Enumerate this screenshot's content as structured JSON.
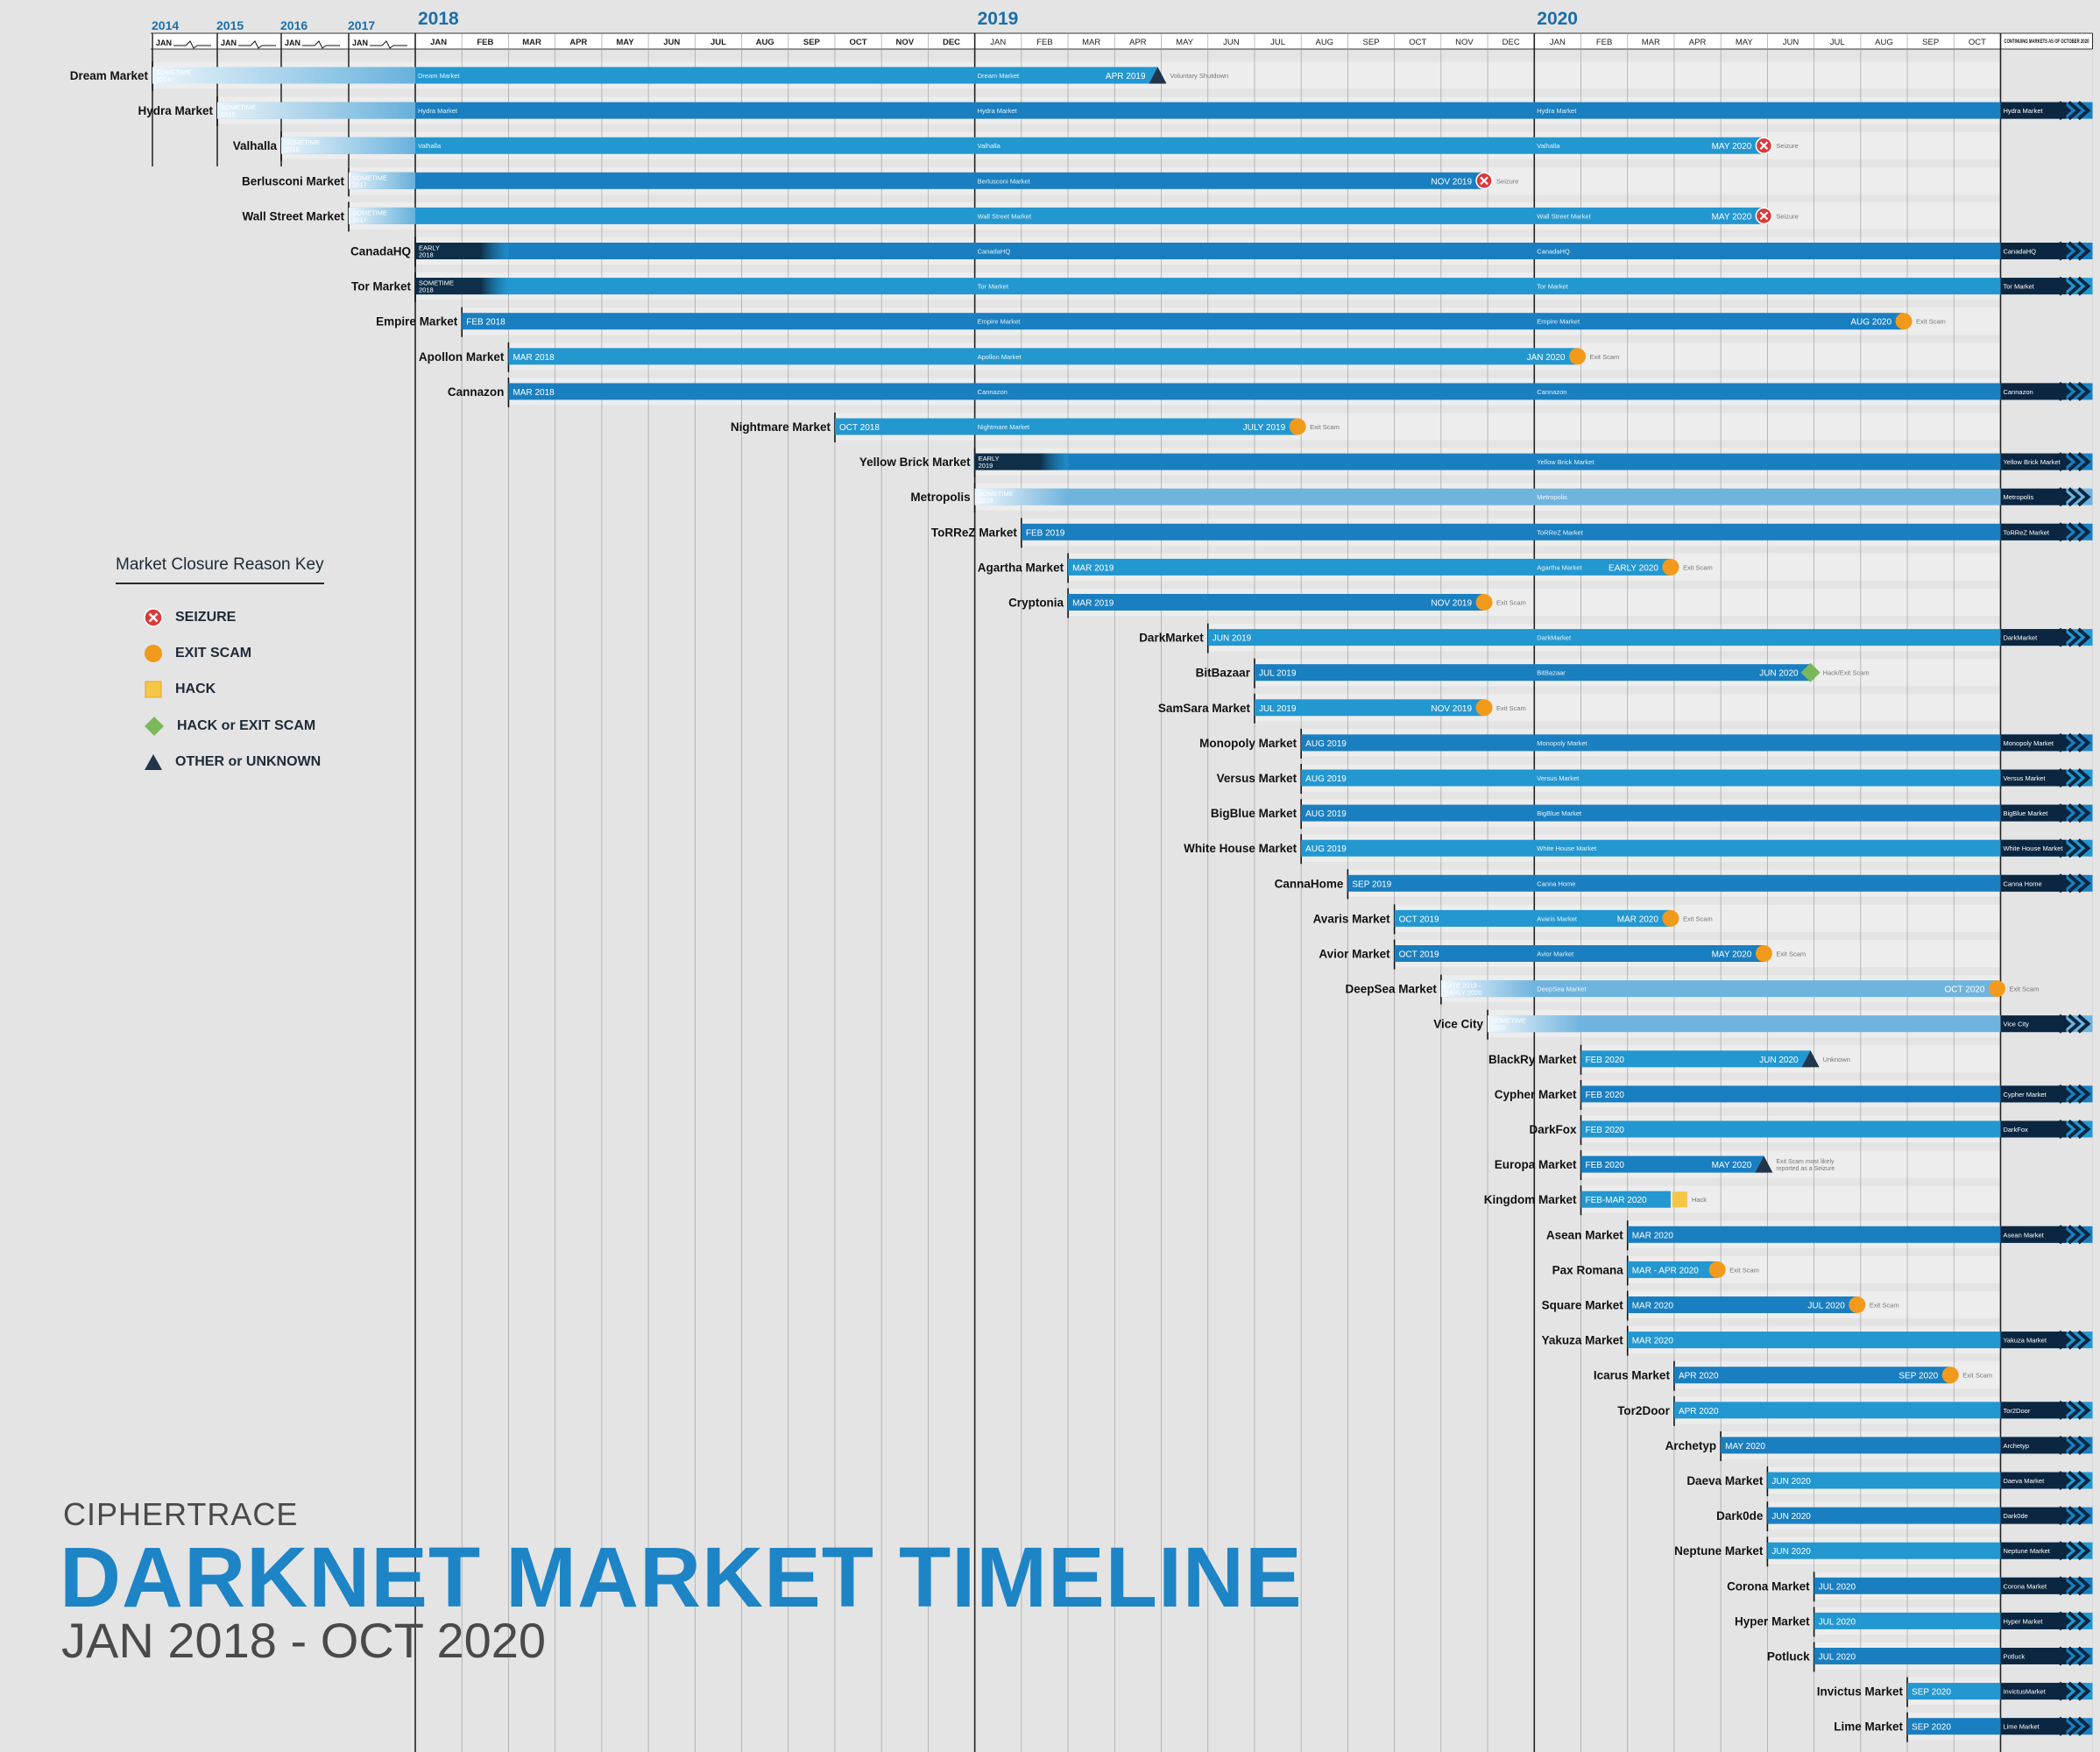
{
  "title": {
    "brand": "CIPHERTRACE",
    "main": "DARKNET MARKET TIMELINE",
    "subtitle": "JAN 2018 - OCT 2020"
  },
  "legend": {
    "title": "Market Closure Reason Key",
    "items": [
      {
        "key": "seizure",
        "label": "SEIZURE",
        "color": "#d93a3a"
      },
      {
        "key": "exit",
        "label": "EXIT SCAM",
        "color": "#f29a1c"
      },
      {
        "key": "hack",
        "label": "HACK",
        "color": "#f7c646"
      },
      {
        "key": "hackexit",
        "label": "HACK or EXIT SCAM",
        "color": "#7bb85a"
      },
      {
        "key": "other",
        "label": "OTHER or UNKNOWN",
        "color": "#22364a"
      }
    ]
  },
  "colors": {
    "bar_dark": "#1a7fc0",
    "bar_mid": "#2397d0",
    "bar_light": "#6fb4de",
    "bar_navy": "#0f2e48",
    "arrow": "#0b2640",
    "grid": "#222222",
    "year_label": "#1d6ea8"
  },
  "chart_data": {
    "type": "timeline",
    "time_unit": "month index (0 = JAN 2018, 33 = OCT 2020); negative values are the compressed 2014-2017 lead-in",
    "early_years": [
      "2014",
      "2015",
      "2016",
      "2017"
    ],
    "early_month": "JAN",
    "year_labels": [
      {
        "year": "2018",
        "month": 0
      },
      {
        "year": "2019",
        "month": 12
      },
      {
        "year": "2020",
        "month": 24
      }
    ],
    "months": [
      "JAN",
      "FEB",
      "MAR",
      "APR",
      "MAY",
      "JUN",
      "JUL",
      "AUG",
      "SEP",
      "OCT",
      "NOV",
      "DEC",
      "JAN",
      "FEB",
      "MAR",
      "APR",
      "MAY",
      "JUN",
      "JUL",
      "AUG",
      "SEP",
      "OCT",
      "NOV",
      "DEC",
      "JAN",
      "FEB",
      "MAR",
      "APR",
      "MAY",
      "JUN",
      "JUL",
      "AUG",
      "SEP",
      "OCT"
    ],
    "continuing_label": "CONTINUING MARKETS AS OF OCTOBER 2020",
    "markets": [
      {
        "name": "Dream Market",
        "start": -4,
        "end": 15,
        "start_label": "SOMETIME 2014",
        "end_label": "APR 2019",
        "closure": "other",
        "note": "Voluntary Shutdown",
        "segment_labels": [
          "Dream Market",
          "Dream Market"
        ]
      },
      {
        "name": "Hydra Market",
        "start": -3,
        "end": null,
        "start_label": "SOMETIME 2015",
        "closure": "continuing",
        "segment_labels": [
          "Hydra Market",
          "Hydra Market",
          "Hydra Market",
          "Hydra Market"
        ]
      },
      {
        "name": "Valhalla",
        "start": -2,
        "end": 28,
        "start_label": "SOMETIME 2016",
        "end_label": "MAY 2020",
        "closure": "seizure",
        "note": "Seizure",
        "segment_labels": [
          "Valhalla",
          "Valhalla",
          "Valhalla"
        ]
      },
      {
        "name": "Berlusconi Market",
        "start": -1,
        "end": 22,
        "start_label": "SOMETIME 2017",
        "end_label": "NOV 2019",
        "closure": "seizure",
        "note": "Seizure",
        "segment_labels": [
          "Berlusconi Market",
          "Berlusconi Market"
        ]
      },
      {
        "name": "Wall Street Market",
        "start": -1,
        "end": 28,
        "start_label": "SOMETIME 2017",
        "end_label": "MAY 2020",
        "closure": "seizure",
        "note": "Seizure",
        "segment_labels": [
          "Wall Street Market",
          "Wall Street Market",
          "Wall Street Market"
        ]
      },
      {
        "name": "CanadaHQ",
        "start": 0,
        "end": null,
        "start_label": "EARLY 2018",
        "closure": "continuing",
        "segment_labels": [
          "CanadaHQ",
          "CanadaHQ",
          "CanadaHQ"
        ]
      },
      {
        "name": "Tor Market",
        "start": 0,
        "end": null,
        "start_label": "SOMETIME 2018",
        "closure": "continuing",
        "segment_labels": [
          "Tor Market",
          "Tor Market",
          "Tor Market"
        ]
      },
      {
        "name": "Empire Market",
        "start": 1,
        "end": 31,
        "start_label": "FEB 2018",
        "end_label": "AUG 2020",
        "closure": "exit",
        "note": "Exit Scam",
        "segment_labels": [
          "Empire Market",
          "Empire Market"
        ]
      },
      {
        "name": "Apollon Market",
        "start": 2,
        "end": 24,
        "start_label": "MAR 2018",
        "end_label": "JAN 2020",
        "closure": "exit",
        "note": "Exit Scam",
        "segment_labels": [
          "Apollon Market"
        ]
      },
      {
        "name": "Cannazon",
        "start": 2,
        "end": null,
        "start_label": "MAR 2018",
        "closure": "continuing",
        "segment_labels": [
          "Cannazon",
          "Cannazon",
          "Cannazon"
        ]
      },
      {
        "name": "Nightmare Market",
        "start": 9,
        "end": 18,
        "start_label": "OCT 2018",
        "end_label": "JULY 2019",
        "closure": "exit",
        "note": "Exit Scam",
        "segment_labels": [
          "Nightmare Market"
        ]
      },
      {
        "name": "Yellow Brick Market",
        "start": 12,
        "end": null,
        "start_label": "EARLY 2019",
        "closure": "continuing",
        "segment_labels": [
          "Yellow Brick Market",
          "Yellow Brick Market"
        ]
      },
      {
        "name": "Metropolis",
        "start": 12,
        "end": null,
        "start_label": "SOMETIME 2019",
        "closure": "continuing",
        "segment_labels": [
          "Metropolis",
          "Metropolis"
        ]
      },
      {
        "name": "ToRReZ Market",
        "start": 13,
        "end": null,
        "start_label": "FEB 2019",
        "closure": "continuing",
        "segment_labels": [
          "ToRReZ Market",
          "ToRReZ Market"
        ]
      },
      {
        "name": "Agartha Market",
        "start": 14,
        "end": 26,
        "start_label": "MAR 2019",
        "end_label": "EARLY 2020",
        "closure": "exit",
        "note": "Exit Scam",
        "segment_labels": [
          "Agartha Market"
        ]
      },
      {
        "name": "Cryptonia",
        "start": 14,
        "end": 22,
        "start_label": "MAR 2019",
        "end_label": "NOV 2019",
        "closure": "exit",
        "note": "Exit Scam",
        "segment_labels": []
      },
      {
        "name": "DarkMarket",
        "start": 17,
        "end": null,
        "start_label": "JUN 2019",
        "closure": "continuing",
        "segment_labels": [
          "DarkMarket",
          "DarkMarket"
        ]
      },
      {
        "name": "BitBazaar",
        "start": 18,
        "end": 29,
        "start_label": "JUL 2019",
        "end_label": "JUN 2020",
        "closure": "hackexit",
        "note": "Hack/Exit Scam",
        "segment_labels": [
          "BitBazaar"
        ]
      },
      {
        "name": "SamSara Market",
        "start": 18,
        "end": 22,
        "start_label": "JUL 2019",
        "end_label": "NOV 2019",
        "closure": "exit",
        "note": "Exit Scam",
        "segment_labels": []
      },
      {
        "name": "Monopoly Market",
        "start": 19,
        "end": null,
        "start_label": "AUG 2019",
        "closure": "continuing",
        "segment_labels": [
          "Monopoly Market",
          "Monopoly Market"
        ]
      },
      {
        "name": "Versus Market",
        "start": 19,
        "end": null,
        "start_label": "AUG 2019",
        "closure": "continuing",
        "segment_labels": [
          "Versus Market",
          "Versus Market"
        ]
      },
      {
        "name": "BigBlue Market",
        "start": 19,
        "end": null,
        "start_label": "AUG 2019",
        "closure": "continuing",
        "segment_labels": [
          "BigBlue Market",
          "BigBlue Market"
        ]
      },
      {
        "name": "White House Market",
        "start": 19,
        "end": null,
        "start_label": "AUG 2019",
        "closure": "continuing",
        "segment_labels": [
          "White House Market",
          "White House Market"
        ]
      },
      {
        "name": "CannaHome",
        "start": 20,
        "end": null,
        "start_label": "SEP 2019",
        "closure": "continuing",
        "segment_labels": [
          "Canna Home",
          "Canna Home"
        ]
      },
      {
        "name": "Avaris Market",
        "start": 21,
        "end": 26,
        "start_label": "OCT 2019",
        "end_label": "MAR 2020",
        "closure": "exit",
        "note": "Exit Scam",
        "segment_labels": [
          "Avaris Market"
        ]
      },
      {
        "name": "Avior Market",
        "start": 21,
        "end": 28,
        "start_label": "OCT 2019",
        "end_label": "MAY 2020",
        "closure": "exit",
        "note": "Exit Scam",
        "segment_labels": [
          "Avior Market"
        ]
      },
      {
        "name": "DeepSea Market",
        "start": 22,
        "end": 33,
        "start_label": "LATE 2019 - EARLY 2020",
        "end_label": "OCT 2020",
        "closure": "exit",
        "note": "Exit Scam",
        "segment_labels": [
          "DeepSea Market"
        ]
      },
      {
        "name": "Vice City",
        "start": 23,
        "end": null,
        "start_label": "SOMETIME 2020",
        "closure": "continuing",
        "segment_labels": [
          "Vice City"
        ]
      },
      {
        "name": "BlackRy Market",
        "start": 25,
        "end": 29,
        "start_label": "FEB 2020",
        "end_label": "JUN 2020",
        "closure": "other",
        "note": "Unknown",
        "segment_labels": []
      },
      {
        "name": "Cypher Market",
        "start": 25,
        "end": null,
        "start_label": "FEB 2020",
        "closure": "continuing",
        "segment_labels": [
          "Cypher Market"
        ]
      },
      {
        "name": "DarkFox",
        "start": 25,
        "end": null,
        "start_label": "FEB 2020",
        "closure": "continuing",
        "segment_labels": [
          "DarkFox"
        ]
      },
      {
        "name": "Europa Market",
        "start": 25,
        "end": 28,
        "start_label": "FEB 2020",
        "end_label": "MAY 2020",
        "closure": "other",
        "note": "Exit Scam most likely reported as a Seizure",
        "segment_labels": []
      },
      {
        "name": "Kingdom Market",
        "start": 25,
        "end": 26,
        "start_label": "FEB-MAR 2020",
        "closure": "hack",
        "note": "Hack",
        "segment_labels": []
      },
      {
        "name": "Asean Market",
        "start": 26,
        "end": null,
        "start_label": "MAR 2020",
        "closure": "continuing",
        "segment_labels": [
          "Asean Market"
        ]
      },
      {
        "name": "Pax Romana",
        "start": 26,
        "end": 27,
        "start_label": "MAR - APR 2020",
        "closure": "exit",
        "note": "Exit Scam",
        "segment_labels": []
      },
      {
        "name": "Square Market",
        "start": 26,
        "end": 30,
        "start_label": "MAR 2020",
        "end_label": "JUL 2020",
        "closure": "exit",
        "note": "Exit Scam",
        "segment_labels": []
      },
      {
        "name": "Yakuza Market",
        "start": 26,
        "end": null,
        "start_label": "MAR 2020",
        "closure": "continuing",
        "segment_labels": [
          "Yakuza Market"
        ]
      },
      {
        "name": "Icarus Market",
        "start": 27,
        "end": 32,
        "start_label": "APR 2020",
        "end_label": "SEP 2020",
        "closure": "exit",
        "note": "Exit Scam",
        "segment_labels": []
      },
      {
        "name": "Tor2Door",
        "start": 27,
        "end": null,
        "start_label": "APR 2020",
        "closure": "continuing",
        "segment_labels": [
          "Tor2Door"
        ]
      },
      {
        "name": "Archetyp",
        "start": 28,
        "end": null,
        "start_label": "MAY 2020",
        "closure": "continuing",
        "segment_labels": [
          "Archetyp"
        ]
      },
      {
        "name": "Daeva Market",
        "start": 29,
        "end": null,
        "start_label": "JUN 2020",
        "closure": "continuing",
        "segment_labels": [
          "Daeva Market"
        ]
      },
      {
        "name": "Dark0de",
        "start": 29,
        "end": null,
        "start_label": "JUN 2020",
        "closure": "continuing",
        "segment_labels": [
          "Dark0de"
        ]
      },
      {
        "name": "Neptune Market",
        "start": 29,
        "end": null,
        "start_label": "JUN 2020",
        "closure": "continuing",
        "segment_labels": [
          "Neptune Market"
        ]
      },
      {
        "name": "Corona Market",
        "start": 30,
        "end": null,
        "start_label": "JUL 2020",
        "closure": "continuing",
        "segment_labels": [
          "Corona Market"
        ]
      },
      {
        "name": "Hyper Market",
        "start": 30,
        "end": null,
        "start_label": "JUL 2020",
        "closure": "continuing",
        "segment_labels": [
          "Hyper Market"
        ]
      },
      {
        "name": "Potluck",
        "start": 30,
        "end": null,
        "start_label": "JUL 2020",
        "closure": "continuing",
        "segment_labels": [
          "Potluck"
        ]
      },
      {
        "name": "Invictus Market",
        "start": 32,
        "end": null,
        "start_label": "SEP 2020",
        "closure": "continuing",
        "segment_labels": [
          "InvictusMarket"
        ]
      },
      {
        "name": "Lime Market",
        "start": 32,
        "end": null,
        "start_label": "SEP 2020",
        "closure": "continuing",
        "segment_labels": [
          "Lime Market"
        ]
      }
    ]
  }
}
